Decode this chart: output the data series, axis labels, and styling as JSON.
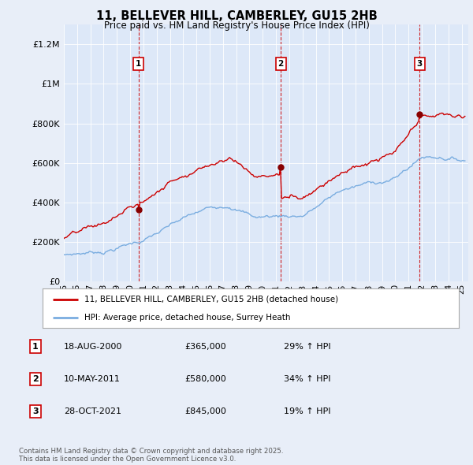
{
  "title": "11, BELLEVER HILL, CAMBERLEY, GU15 2HB",
  "subtitle": "Price paid vs. HM Land Registry's House Price Index (HPI)",
  "ylim": [
    0,
    1300000
  ],
  "xlim_start": 1995.0,
  "xlim_end": 2025.5,
  "line1_color": "#cc0000",
  "line2_color": "#7aade0",
  "vline_color": "#cc0000",
  "plot_bg_color": "#dde8f8",
  "fig_bg_color": "#e8eef8",
  "sale_dates": [
    2000.63,
    2011.36,
    2021.83
  ],
  "sale_prices": [
    365000,
    580000,
    845000
  ],
  "sale_labels": [
    "1",
    "2",
    "3"
  ],
  "legend_label1": "11, BELLEVER HILL, CAMBERLEY, GU15 2HB (detached house)",
  "legend_label2": "HPI: Average price, detached house, Surrey Heath",
  "table_rows": [
    [
      "1",
      "18-AUG-2000",
      "£365,000",
      "29% ↑ HPI"
    ],
    [
      "2",
      "10-MAY-2011",
      "£580,000",
      "34% ↑ HPI"
    ],
    [
      "3",
      "28-OCT-2021",
      "£845,000",
      "19% ↑ HPI"
    ]
  ],
  "footnote": "Contains HM Land Registry data © Crown copyright and database right 2025.\nThis data is licensed under the Open Government Licence v3.0.",
  "yticks": [
    0,
    200000,
    400000,
    600000,
    800000,
    1000000,
    1200000
  ],
  "ytick_labels": [
    "£0",
    "£200K",
    "£400K",
    "£600K",
    "£800K",
    "£1M",
    "£1.2M"
  ]
}
